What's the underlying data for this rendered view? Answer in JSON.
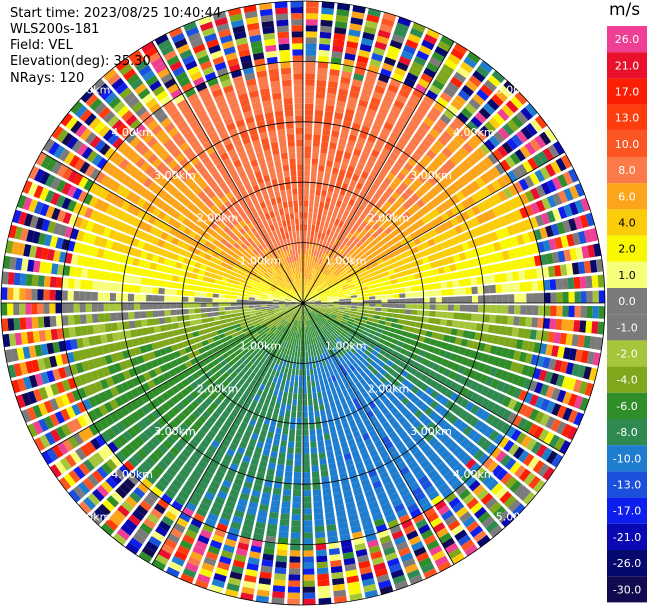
{
  "info": {
    "start_time": "Start time: 2023/08/25 10:40:44",
    "instrument": "WLS200s-181",
    "field": "Field: VEL",
    "elevation": "Elevation(deg): 35.30",
    "nrays": "NRays: 120"
  },
  "colorbar": {
    "unit": "m/s",
    "labels": [
      "26.0",
      "21.0",
      "17.0",
      "13.0",
      "10.0",
      "8.0",
      "6.0",
      "4.0",
      "2.0",
      "1.0",
      "0.0",
      "-1.0",
      "-2.0",
      "-4.0",
      "-6.0",
      "-8.0",
      "-10.0",
      "-13.0",
      "-17.0",
      "-21.0",
      "-26.0",
      "-30.0"
    ],
    "colors": [
      "#ee3f95",
      "#e8102a",
      "#fb1e03",
      "#fd3d0d",
      "#fb5522",
      "#fa7a4a",
      "#fca51b",
      "#fbcc0a",
      "#f9f800",
      "#f7ff78",
      "#7b7b7b",
      "#7b7b7b",
      "#a5c63b",
      "#7ea71c",
      "#2f8e2a",
      "#2f8a52",
      "#1f7dd0",
      "#1b50dd",
      "#0d1eef",
      "#0a07b4",
      "#05086e",
      "#110a50"
    ]
  },
  "chart_data": {
    "type": "heatmap",
    "projection": "polar (PPI)",
    "field": "VEL",
    "nrays": 120,
    "range_rings_km": [
      1.0,
      2.0,
      3.0,
      4.0,
      5.0
    ],
    "ring_labels": [
      "1.00km",
      "2.00km",
      "3.00km",
      "4.00km",
      "5.00km"
    ],
    "max_range_km": 5.0,
    "spokes_deg": [
      0,
      30,
      60,
      90,
      120,
      150,
      180,
      210,
      240,
      270,
      300,
      330
    ],
    "colorbar_ticks": [
      26.0,
      21.0,
      17.0,
      13.0,
      10.0,
      8.0,
      6.0,
      4.0,
      2.0,
      1.0,
      0.0,
      -1.0,
      -2.0,
      -4.0,
      -6.0,
      -8.0,
      -10.0,
      -13.0,
      -17.0,
      -21.0,
      -26.0,
      -30.0
    ],
    "vmin": -30.0,
    "vmax": 30.0,
    "velocity_pattern": {
      "north_sector_ms": 10.0,
      "south_sector_ms": -8.0,
      "southeast_sector_ms": -13.0,
      "near_zero_band": "east-west",
      "valid_range_km": 3.9,
      "noise_beyond_km": 3.9
    }
  }
}
